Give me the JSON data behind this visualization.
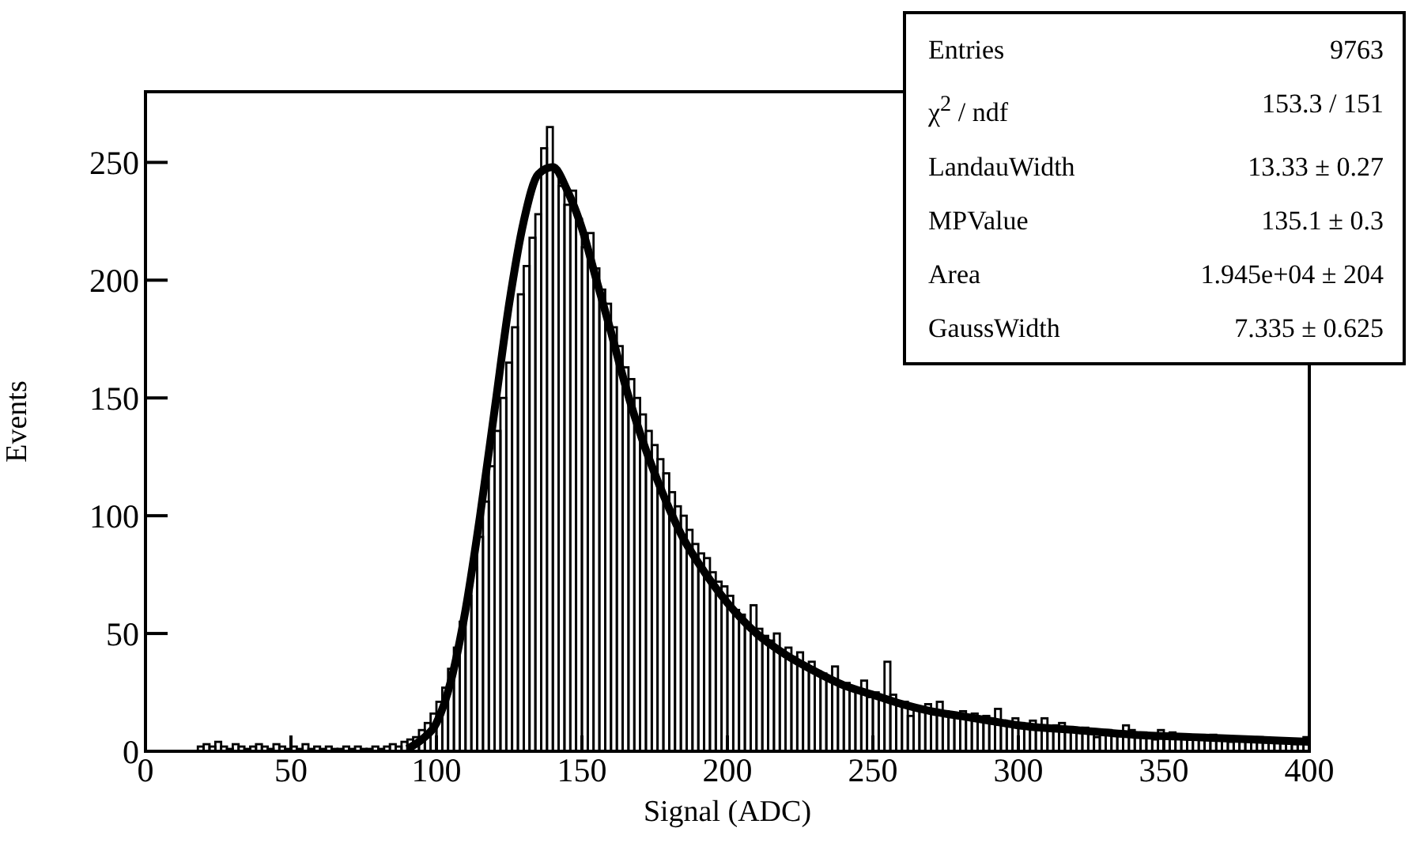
{
  "chart_data": {
    "type": "histogram",
    "xlabel": "Signal (ADC)",
    "ylabel": "Events",
    "xlim": [
      0,
      400
    ],
    "xticks": [
      0,
      50,
      100,
      150,
      200,
      250,
      300,
      350,
      400
    ],
    "ylim": [
      0,
      280
    ],
    "yticks": [
      0,
      50,
      100,
      150,
      200,
      250
    ],
    "grid": false,
    "legend": false,
    "annotations": [
      "Entries",
      "9763",
      "χ$^{2}$ / ndf",
      "153.3 / 151",
      "LandauWidth",
      "13.33 ± 0.27",
      "MPValue",
      "135.1 ± 0.3",
      "Area",
      "1.945e+04 ± 204",
      "GaussWidth",
      "7.335 ± 0.625"
    ],
    "series": [
      {
        "color": "#000000",
        "bins": [
          18,
          20,
          22,
          24,
          26,
          28,
          30,
          32,
          34,
          36,
          38,
          40,
          42,
          44,
          46,
          48,
          50,
          52,
          54,
          56,
          58,
          60,
          62,
          64,
          66,
          68,
          70,
          72,
          74,
          76,
          78,
          80,
          82,
          84,
          86,
          88,
          90,
          92,
          94,
          96,
          98,
          100,
          102,
          104,
          106,
          108,
          110,
          112,
          114,
          116,
          118,
          120,
          122,
          124,
          126,
          128,
          130,
          132,
          134,
          136,
          138,
          140,
          142,
          144,
          146,
          148,
          150,
          152,
          154,
          156,
          158,
          160,
          162,
          164,
          166,
          168,
          170,
          172,
          174,
          176,
          178,
          180,
          182,
          184,
          186,
          188,
          190,
          192,
          194,
          196,
          198,
          200,
          202,
          204,
          206,
          208,
          210,
          212,
          214,
          216,
          218,
          220,
          222,
          224,
          226,
          228,
          230,
          232,
          234,
          236,
          238,
          240,
          242,
          244,
          246,
          248,
          250,
          252,
          254,
          256,
          258,
          260,
          262,
          264,
          266,
          268,
          270,
          272,
          274,
          276,
          278,
          280,
          282,
          284,
          286,
          288,
          290,
          292,
          294,
          296,
          298,
          300,
          302,
          304,
          306,
          308,
          310,
          312,
          314,
          316,
          318,
          320,
          322,
          324,
          326,
          328,
          330,
          332,
          334,
          336,
          338,
          340,
          342,
          344,
          346,
          348,
          350,
          352,
          354,
          356,
          358,
          360,
          362,
          364,
          366,
          368,
          370,
          372,
          374,
          376,
          378,
          380,
          382,
          384,
          386,
          388,
          390,
          392,
          394,
          396,
          398,
          400
        ],
        "values": [
          2,
          3,
          2,
          4,
          2,
          1,
          3,
          2,
          1,
          2,
          3,
          2,
          1,
          3,
          2,
          1,
          2,
          1,
          3,
          1,
          2,
          1,
          2,
          1,
          1,
          2,
          1,
          2,
          1,
          1,
          2,
          1,
          2,
          3,
          2,
          4,
          5,
          6,
          9,
          12,
          16,
          21,
          27,
          35,
          44,
          55,
          66,
          78,
          91,
          106,
          121,
          136,
          150,
          165,
          180,
          194,
          206,
          218,
          228,
          256,
          265,
          246,
          240,
          232,
          238,
          226,
          214,
          220,
          205,
          196,
          190,
          180,
          172,
          163,
          158,
          150,
          143,
          136,
          130,
          124,
          118,
          110,
          104,
          100,
          94,
          88,
          84,
          82,
          76,
          72,
          70,
          66,
          60,
          58,
          54,
          62,
          52,
          49,
          47,
          50,
          43,
          44,
          40,
          42,
          36,
          38,
          34,
          33,
          30,
          36,
          28,
          29,
          27,
          26,
          30,
          23,
          25,
          22,
          38,
          24,
          20,
          21,
          15,
          19,
          18,
          20,
          16,
          21,
          17,
          16,
          15,
          17,
          14,
          16,
          13,
          15,
          12,
          18,
          13,
          11,
          14,
          12,
          10,
          13,
          11,
          14,
          10,
          11,
          12,
          9,
          10,
          8,
          10,
          9,
          6,
          8,
          9,
          7,
          8,
          11,
          9,
          6,
          8,
          7,
          5,
          9,
          6,
          8,
          6,
          7,
          5,
          6,
          5,
          6,
          7,
          5,
          6,
          4,
          5,
          6,
          5,
          4,
          6,
          5,
          5,
          4,
          5,
          4,
          3,
          4,
          6
        ]
      },
      {
        "type": "line",
        "color": "#000000",
        "x": [
          90,
          95,
          100,
          105,
          110,
          115,
          120,
          125,
          130,
          135,
          140,
          145,
          150,
          155,
          160,
          165,
          170,
          175,
          180,
          185,
          190,
          195,
          200,
          210,
          220,
          230,
          240,
          250,
          260,
          270,
          280,
          290,
          300,
          320,
          340,
          360,
          380,
          400
        ],
        "values": [
          1,
          5,
          12,
          30,
          60,
          100,
          145,
          190,
          225,
          245,
          248,
          238,
          222,
          200,
          178,
          155,
          135,
          118,
          103,
          90,
          80,
          71,
          63,
          50,
          41,
          34,
          28,
          24,
          20,
          17,
          15,
          13,
          11,
          9,
          7,
          6,
          5,
          4
        ]
      }
    ]
  }
}
